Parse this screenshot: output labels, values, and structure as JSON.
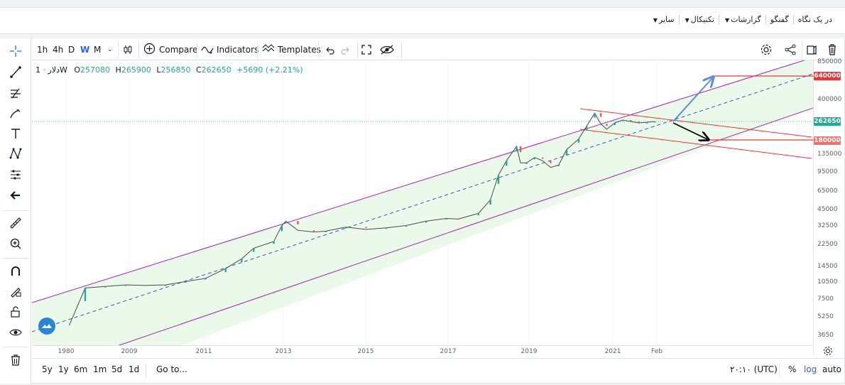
{
  "topnav": {
    "items": [
      {
        "label": "در یک نگاه",
        "caret": false
      },
      {
        "label": "گفتگو",
        "caret": false
      },
      {
        "label": "گزارشات",
        "caret": true
      },
      {
        "label": "تکنیکال",
        "caret": true
      },
      {
        "label": "سایر",
        "caret": true
      }
    ]
  },
  "toolbar": {
    "intervals": [
      "1h",
      "4h",
      "D",
      "W",
      "M"
    ],
    "active_interval": "W",
    "compare_label": "Compare",
    "indicators_label": "Indicators",
    "templates_label": "Templates"
  },
  "legend": {
    "symbol": "دلار",
    "interval": "1W",
    "open_label": "O",
    "open": "257080",
    "high_label": "H",
    "high": "265900",
    "low_label": "L",
    "low": "256850",
    "close_label": "C",
    "close": "262650",
    "change": "+5690 (+2.21%)"
  },
  "bottombar": {
    "ranges": [
      "5y",
      "1y",
      "6m",
      "1m",
      "5d",
      "1d"
    ],
    "goto_label": "Go to...",
    "time_label": "۲۰:۱۰ (UTC)",
    "percent_label": "%",
    "log_label": "log",
    "auto_label": "auto"
  },
  "price_tags": {
    "target_high": "640000",
    "current": "262650",
    "target_low": "180000"
  },
  "colors": {
    "accent": "#2962ff",
    "channel_line": "#9c27b0",
    "channel_fill": "#e8f8e6",
    "trendline": "#e53935",
    "up": "#26a69a",
    "down": "#ef5350"
  },
  "chart_data": {
    "type": "candlestick",
    "title": "",
    "scale": "log",
    "x_tick_labels": [
      "1980",
      "2009",
      "2011",
      "2013",
      "2015",
      "2017",
      "2019",
      "2021",
      "Feb"
    ],
    "y_tick_labels": [
      "850000",
      "640000",
      "400000",
      "262650",
      "180000",
      "135000",
      "95000",
      "65000",
      "45000",
      "32500",
      "22500",
      "14500",
      "10500",
      "7500",
      "5250",
      "3650"
    ],
    "series": [
      {
        "years": [
          2007.6,
          2008.0,
          2008.5,
          2009.0,
          2009.5,
          2010.0,
          2010.5,
          2011.0,
          2011.5,
          2011.9,
          2012.2,
          2012.7,
          2012.9,
          2013.0,
          2013.3,
          2013.7,
          2014.0,
          2014.5,
          2015.0,
          2015.5,
          2016.0,
          2016.5,
          2017.0,
          2017.3,
          2017.8,
          2018.1,
          2018.3,
          2018.5,
          2018.75,
          2018.85,
          2019.0,
          2019.2,
          2019.4,
          2019.6,
          2019.8,
          2020.0,
          2020.3,
          2020.5,
          2020.7,
          2020.85,
          2021.0,
          2021.2,
          2021.4,
          2021.6,
          2021.8,
          2022.0,
          2022.2
        ],
        "values": [
          4500,
          9500,
          9800,
          10100,
          10000,
          10100,
          10800,
          11500,
          14000,
          17000,
          21000,
          24000,
          33000,
          36000,
          30000,
          29000,
          29500,
          32000,
          30500,
          31500,
          33000,
          36000,
          38000,
          37500,
          42000,
          55000,
          90000,
          120000,
          160000,
          115000,
          115000,
          128000,
          120000,
          105000,
          110000,
          150000,
          185000,
          240000,
          310000,
          250000,
          225000,
          255000,
          270000,
          262000,
          255000,
          258000,
          262650
        ]
      }
    ],
    "annotations": [
      "parallel channel",
      "channel median (dashed)",
      "descending trend channel",
      "arrow up to 640000",
      "arrow down to 180000"
    ]
  }
}
